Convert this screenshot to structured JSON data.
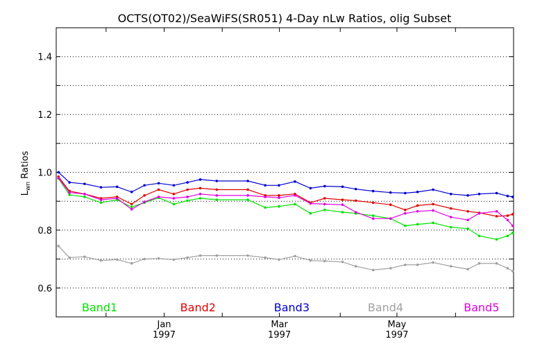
{
  "chart_data": {
    "type": "line",
    "title": "OCTS(OT02)/SeaWiFS(SR051) 4-Day nLw Ratios, olig Subset",
    "ylabel_main": "L",
    "ylabel_sub": "wn",
    "ylabel_rest": " Ratios",
    "xlabel": "",
    "ylim": [
      0.5,
      1.5
    ],
    "xlim": [
      0,
      100
    ],
    "grid": true,
    "y_ticks": [
      0.6,
      0.8,
      1.0,
      1.2,
      1.4
    ],
    "y_tick_labels": [
      "0.6",
      "0.8",
      "1.0",
      "1.2",
      "1.4"
    ],
    "y_grid": [
      0.6,
      0.7,
      0.8,
      0.9,
      1.0,
      1.1,
      1.2,
      1.3,
      1.4
    ],
    "x_ticks": [
      {
        "x": 23.6,
        "month": "Jan",
        "year": "1997"
      },
      {
        "x": 48.8,
        "month": "Mar",
        "year": "1997"
      },
      {
        "x": 74.5,
        "month": "May",
        "year": "1997"
      }
    ],
    "x_minor_ticks": [
      10.9,
      23.6,
      36.3,
      48.8,
      62.1,
      74.5,
      87.3
    ],
    "x": [
      0.5,
      2.9,
      6.2,
      9.8,
      13.3,
      16.5,
      19.3,
      22.4,
      25.7,
      28.7,
      31.5,
      35.1,
      41.9,
      45.7,
      48.7,
      52.2,
      55.6,
      58.7,
      62.6,
      65.5,
      69.3,
      73.1,
      76.3,
      79.0,
      82.4,
      86.3,
      90.0,
      92.5,
      96.3,
      98.7,
      99.8
    ],
    "series": [
      {
        "name": "Band1",
        "color": "#00e000",
        "values": [
          0.978,
          0.922,
          0.915,
          0.895,
          0.905,
          0.88,
          0.895,
          0.912,
          0.89,
          0.902,
          0.91,
          0.905,
          0.905,
          0.878,
          0.882,
          0.89,
          0.858,
          0.87,
          0.862,
          0.858,
          0.85,
          0.84,
          0.815,
          0.82,
          0.825,
          0.81,
          0.805,
          0.78,
          0.768,
          0.78,
          0.79
        ]
      },
      {
        "name": "Band2",
        "color": "#e00000",
        "values": [
          0.985,
          0.935,
          0.925,
          0.91,
          0.915,
          0.89,
          0.92,
          0.94,
          0.925,
          0.94,
          0.945,
          0.94,
          0.94,
          0.92,
          0.92,
          0.925,
          0.895,
          0.91,
          0.905,
          0.902,
          0.895,
          0.888,
          0.87,
          0.885,
          0.89,
          0.875,
          0.865,
          0.86,
          0.848,
          0.85,
          0.855
        ]
      },
      {
        "name": "Band3",
        "color": "#0000d0",
        "values": [
          1.0,
          0.965,
          0.96,
          0.948,
          0.95,
          0.932,
          0.955,
          0.962,
          0.955,
          0.965,
          0.975,
          0.97,
          0.97,
          0.955,
          0.955,
          0.968,
          0.945,
          0.952,
          0.95,
          0.942,
          0.935,
          0.93,
          0.928,
          0.932,
          0.94,
          0.925,
          0.92,
          0.925,
          0.928,
          0.918,
          0.915
        ]
      },
      {
        "name": "Band4",
        "color": "#a0a0a0",
        "values": [
          0.745,
          0.705,
          0.708,
          0.695,
          0.698,
          0.685,
          0.7,
          0.702,
          0.698,
          0.705,
          0.712,
          0.712,
          0.712,
          0.705,
          0.698,
          0.71,
          0.695,
          0.693,
          0.69,
          0.675,
          0.662,
          0.668,
          0.68,
          0.68,
          0.688,
          0.675,
          0.665,
          0.685,
          0.685,
          0.668,
          0.658
        ]
      },
      {
        "name": "Band5",
        "color": "#e000e0",
        "values": [
          0.98,
          0.93,
          0.925,
          0.905,
          0.91,
          0.872,
          0.898,
          0.915,
          0.91,
          0.915,
          0.925,
          0.92,
          0.92,
          0.915,
          0.912,
          0.92,
          0.892,
          0.89,
          0.888,
          0.862,
          0.84,
          0.84,
          0.858,
          0.865,
          0.868,
          0.845,
          0.835,
          0.858,
          0.865,
          0.835,
          0.815
        ]
      }
    ],
    "legend": {
      "placement": "bottom-inside",
      "entries": [
        {
          "label": "Band1",
          "color": "#00e000",
          "x": 9.5
        },
        {
          "label": "Band2",
          "color": "#e00000",
          "x": 31.0
        },
        {
          "label": "Band3",
          "color": "#0000d0",
          "x": 51.5
        },
        {
          "label": "Band4",
          "color": "#a0a0a0",
          "x": 72.0
        },
        {
          "label": "Band5",
          "color": "#e000e0",
          "x": 93.0
        }
      ]
    }
  }
}
